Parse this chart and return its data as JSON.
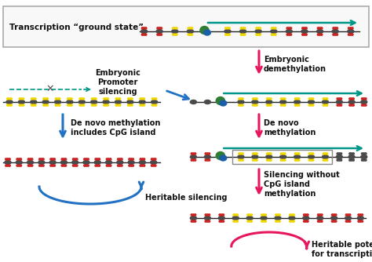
{
  "bg_color": "#ffffff",
  "chromatin_colors": {
    "dark_nucleosome": "#4a4a4a",
    "yellow_dot": "#f0d800",
    "red_dot": "#cc2222",
    "green_blob": "#2e7d32",
    "blue_blob": "#1a5fa8",
    "teal_arrow": "#009688",
    "pink_arrow": "#e8175d",
    "blue_arrow": "#2271c3",
    "box_border": "#aaaaaa"
  },
  "labels": {
    "ground_state": "Transcription “ground state”",
    "embryonic_demethylation": "Embryonic\ndemethylation",
    "embryonic_promoter": "Embryonic\nPromoter\nsilencing",
    "de_novo_left": "De novo methylation\nincludes CpG island",
    "de_novo_right": "De novo\nmethylation",
    "heritable_silencing": "Heritable silencing",
    "silencing_without": "Silencing without\nCpG island\nmethylation",
    "heritable_potential": "Heritable potential\nfor transcription"
  }
}
